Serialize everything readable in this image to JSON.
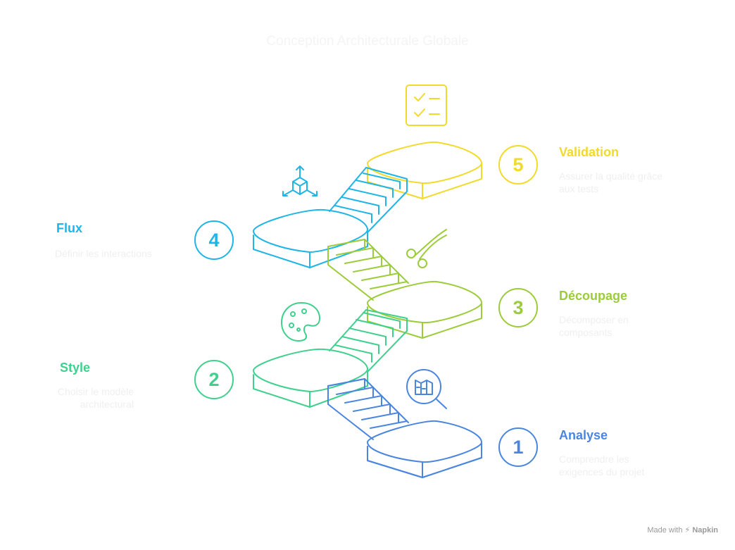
{
  "title": "Conception Architecturale Globale",
  "steps": [
    {
      "number": "1",
      "title": "Analyse",
      "desc_lines": [
        "Comprendre les",
        "exigences du projet"
      ],
      "color": "#4a86e0",
      "icon": "magnifier-blueprint-icon"
    },
    {
      "number": "2",
      "title": "Style",
      "desc_lines": [
        "Choisir le modèle",
        "architectural"
      ],
      "color": "#3fd08e",
      "icon": "palette-icon"
    },
    {
      "number": "3",
      "title": "Découpage",
      "desc_lines": [
        "Décomposer en",
        "composants"
      ],
      "color": "#9ccc3a",
      "icon": "scissors-icon"
    },
    {
      "number": "4",
      "title": "Flux",
      "desc_lines": [
        "Définir les interactions"
      ],
      "color": "#1fb5e6",
      "icon": "cube-axes-icon"
    },
    {
      "number": "5",
      "title": "Validation",
      "desc_lines": [
        "Assurer la qualité grâce",
        "aux tests"
      ],
      "color": "#f2da2a",
      "icon": "checklist-icon"
    }
  ],
  "footer": {
    "made_with": "Made with",
    "brand": "Napkin"
  }
}
